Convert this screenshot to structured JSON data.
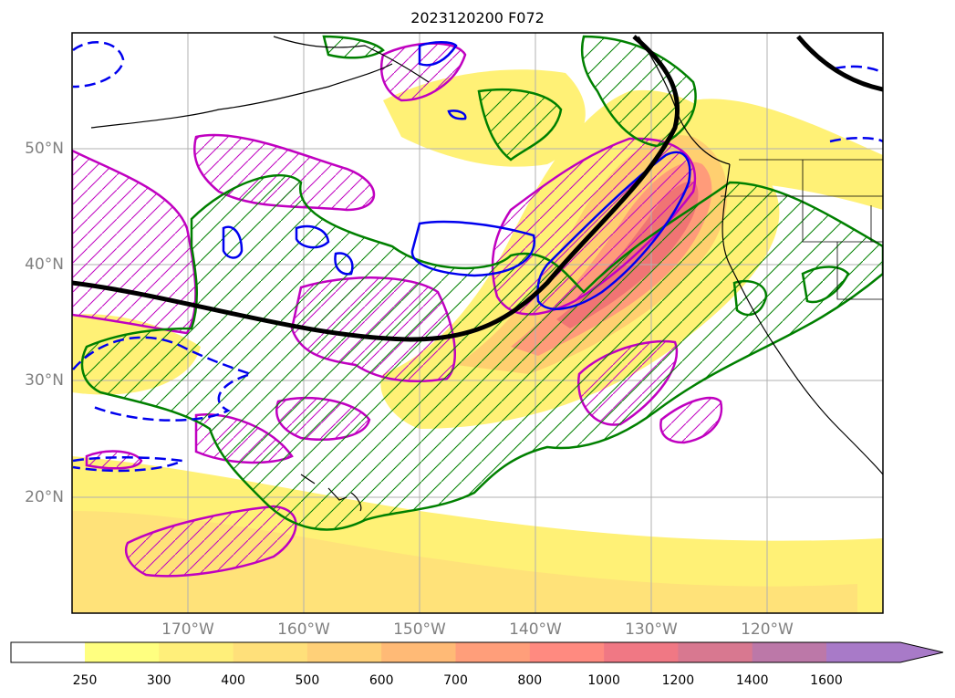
{
  "title": "2023120200 F072",
  "map": {
    "lon_range": [
      -180,
      -110
    ],
    "lat_range": [
      10,
      60
    ],
    "lat_labels": [
      "50°N",
      "40°N",
      "30°N",
      "20°N"
    ],
    "lat_values": [
      50,
      40,
      30,
      20
    ],
    "lon_labels": [
      "170°W",
      "160°W",
      "150°W",
      "140°W",
      "130°W",
      "120°W"
    ],
    "lon_values": [
      -170,
      -160,
      -150,
      -140,
      -130,
      -120
    ],
    "colors": {
      "fill_low": "#fff176",
      "fill_mid": "#ffcf70",
      "fill_high": "#ff9b7a",
      "fill_peak": "#f07474",
      "magenta": "#c000c0",
      "green": "#008000",
      "blue": "#0000ee",
      "black": "#000000",
      "grid": "#b0b0b0"
    }
  },
  "colorbar": {
    "labels": [
      "250",
      "300",
      "400",
      "500",
      "600",
      "700",
      "800",
      "1000",
      "1200",
      "1400",
      "1600"
    ],
    "colors": [
      "#ffff80",
      "#ffef7a",
      "#ffe07a",
      "#ffd078",
      "#ffba76",
      "#ff9e7a",
      "#ff8a80",
      "#f07884",
      "#d87890",
      "#bc78a8",
      "#a87ac8"
    ],
    "extend_color": "#a87ac8"
  }
}
